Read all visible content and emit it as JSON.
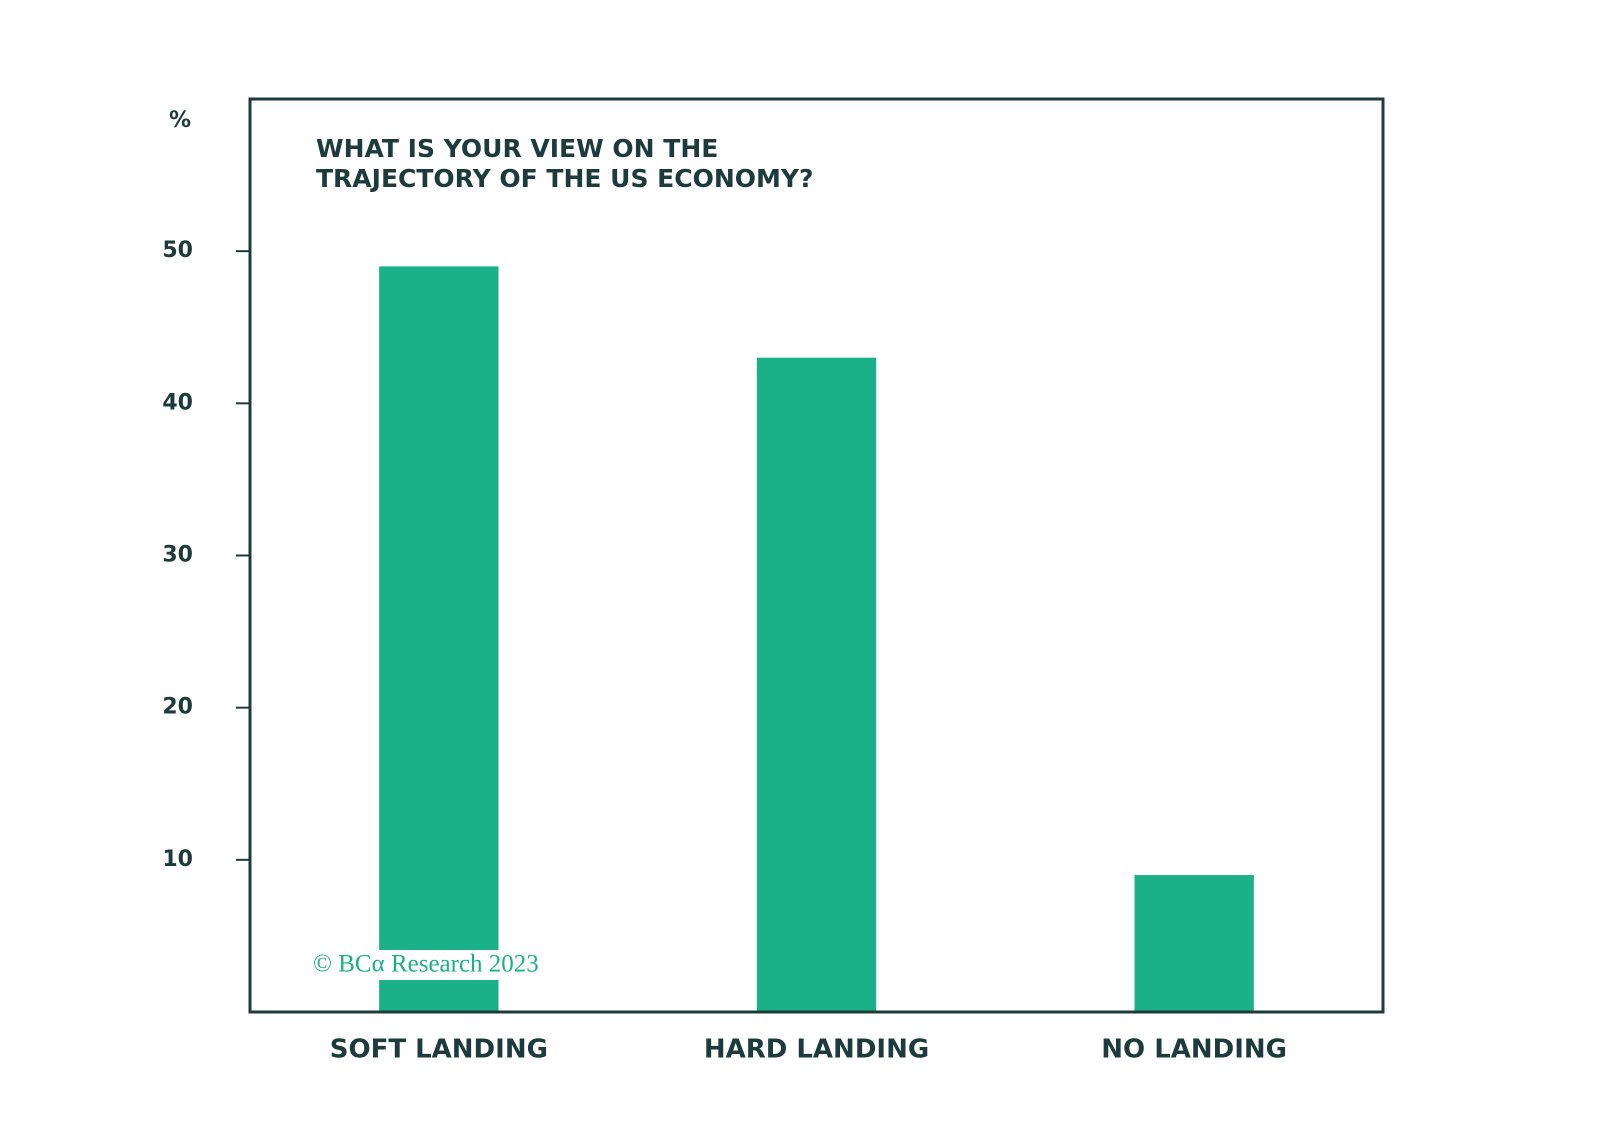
{
  "chart_data": {
    "type": "bar",
    "title": [
      "WHAT IS YOUR VIEW ON THE",
      "TRAJECTORY OF THE US ECONOMY?"
    ],
    "y_label": "%",
    "categories": [
      "SOFT LANDING",
      "HARD LANDING",
      "NO LANDING"
    ],
    "values": [
      49,
      43,
      9
    ],
    "color": "#1ab188",
    "ylim": [
      0,
      60
    ],
    "yticks": [
      10,
      20,
      30,
      40,
      50
    ],
    "watermark": "© BCα Research 2023"
  }
}
